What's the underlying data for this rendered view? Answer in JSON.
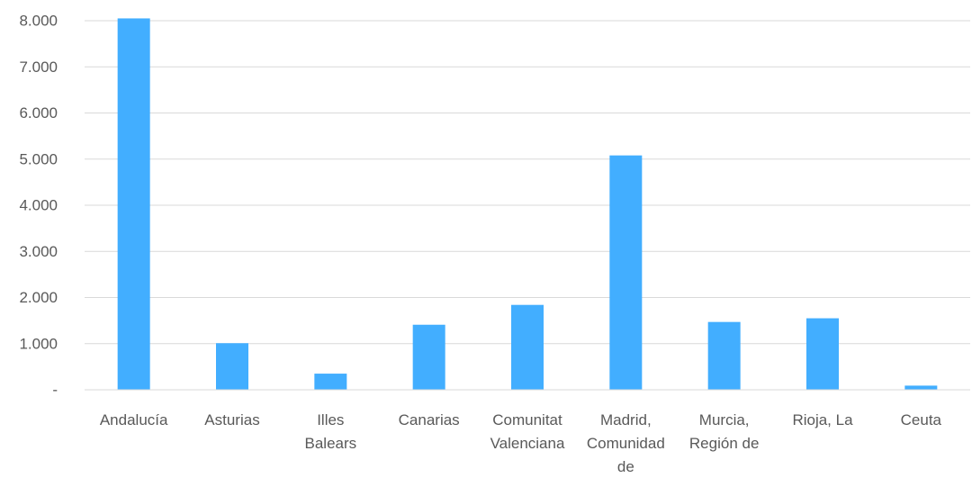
{
  "chart_data": {
    "type": "bar",
    "categories": [
      [
        "Andalucía"
      ],
      [
        "Asturias"
      ],
      [
        "Illes",
        "Balears"
      ],
      [
        "Canarias"
      ],
      [
        "Comunitat",
        "Valenciana"
      ],
      [
        "Madrid,",
        "Comunidad",
        "de"
      ],
      [
        "Murcia,",
        "Región de"
      ],
      [
        "Rioja, La"
      ],
      [
        "Ceuta"
      ]
    ],
    "values": [
      8050,
      1010,
      350,
      1410,
      1840,
      5080,
      1470,
      1550,
      90
    ],
    "ylim": [
      0,
      8000
    ],
    "yticks": [
      0,
      1000,
      2000,
      3000,
      4000,
      5000,
      6000,
      7000,
      8000
    ],
    "ytick_labels": [
      "-",
      "1.000",
      "2.000",
      "3.000",
      "4.000",
      "5.000",
      "6.000",
      "7.000",
      "8.000"
    ],
    "bar_color": "#42aeff",
    "grid": true,
    "legend": "none"
  }
}
